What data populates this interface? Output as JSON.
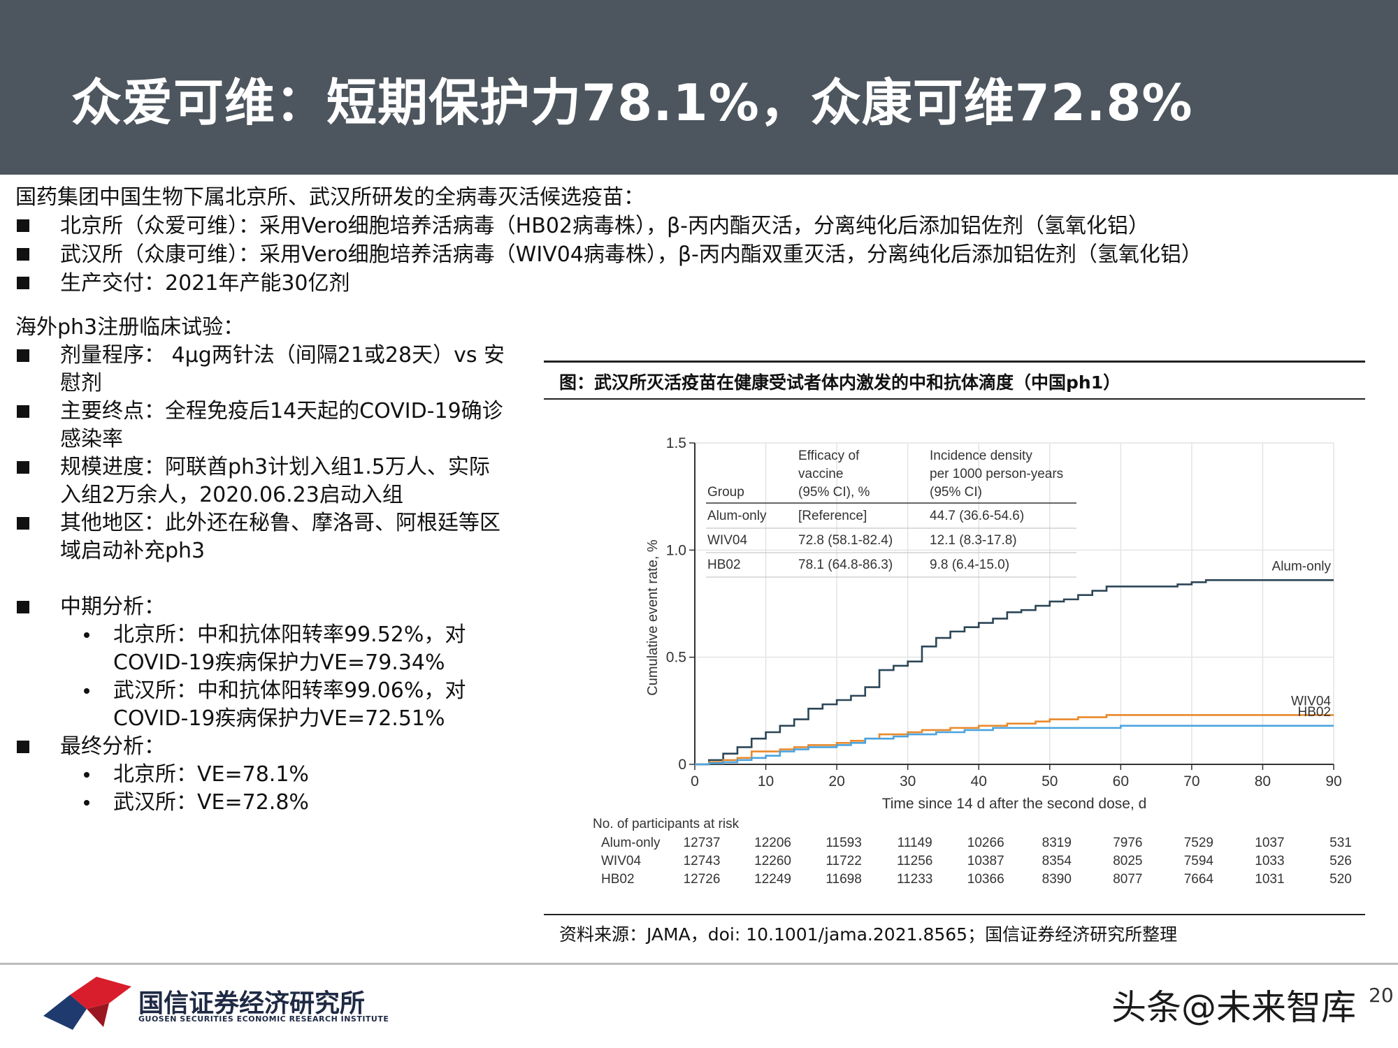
{
  "header": {
    "title": "众爱可维：短期保护力78.1%，众康可维72.8%"
  },
  "intro": {
    "line": "国药集团中国生物下属北京所、武汉所研发的全病毒灭活候选疫苗：",
    "bullets": [
      "北京所（众爱可维）：采用Vero细胞培养活病毒（HB02病毒株），β-丙内酯灭活，分离纯化后添加铝佐剂（氢氧化铝）",
      "武汉所（众康可维）：采用Vero细胞培养活病毒（WIV04病毒株），β-丙内酯双重灭活，分离纯化后添加铝佐剂（氢氧化铝）",
      "生产交付：2021年产能30亿剂"
    ]
  },
  "left": {
    "heading": "海外ph3注册临床试验：",
    "bullets": [
      "剂量程序： 4μg两针法（间隔21或28天）vs 安慰剂",
      "主要终点：全程免疫后14天起的COVID-19确诊感染率",
      "规模进度：阿联酋ph3计划入组1.5万人、实际入组2万余人，2020.06.23启动入组",
      "其他地区：此外还在秘鲁、摩洛哥、阿根廷等区域启动补充ph3"
    ],
    "interim": {
      "label": "中期分析：",
      "items": [
        "北京所：中和抗体阳转率99.52%，对COVID-19疾病保护力VE=79.34%",
        "武汉所：中和抗体阳转率99.06%，对COVID-19疾病保护力VE=72.51%"
      ]
    },
    "final": {
      "label": "最终分析：",
      "items": [
        "北京所：VE=78.1%",
        "武汉所：VE=72.8%"
      ]
    }
  },
  "figure": {
    "title": "图：武汉所灭活疫苗在健康受试者体内激发的中和抗体滴度（中国ph1）",
    "source": "资料来源：JAMA，doi: 10.1001/jama.2021.8565；国信证券经济研究所整理"
  },
  "chart_data": {
    "type": "line",
    "xlabel": "Time since 14 d after the second dose, d",
    "ylabel": "Cumulative event rate, %",
    "xlim": [
      0,
      90
    ],
    "ylim": [
      0,
      1.5
    ],
    "xticks": [
      "0",
      "10",
      "20",
      "30",
      "40",
      "50",
      "60",
      "70",
      "80",
      "90"
    ],
    "yticks": [
      "0",
      "0.5",
      "1.0",
      "1.5"
    ],
    "grid": true,
    "series": [
      {
        "name": "Alum-only",
        "color": "#2b4657",
        "x": [
          0,
          2,
          4,
          6,
          8,
          10,
          12,
          14,
          16,
          18,
          20,
          22,
          24,
          26,
          28,
          30,
          32,
          34,
          36,
          38,
          40,
          42,
          44,
          46,
          48,
          50,
          52,
          54,
          56,
          58,
          60,
          62,
          64,
          66,
          68,
          70,
          72,
          74,
          76,
          78,
          80,
          82,
          84,
          86,
          88,
          90
        ],
        "y": [
          0,
          0.02,
          0.05,
          0.08,
          0.12,
          0.15,
          0.18,
          0.21,
          0.26,
          0.28,
          0.3,
          0.32,
          0.36,
          0.44,
          0.46,
          0.48,
          0.55,
          0.59,
          0.62,
          0.64,
          0.66,
          0.68,
          0.71,
          0.72,
          0.74,
          0.76,
          0.77,
          0.79,
          0.81,
          0.83,
          0.83,
          0.83,
          0.83,
          0.83,
          0.84,
          0.85,
          0.86,
          0.86,
          0.86,
          0.86,
          0.86,
          0.86,
          0.86,
          0.86,
          0.86,
          0.86
        ]
      },
      {
        "name": "WIV04",
        "color": "#e8892b",
        "x": [
          0,
          2,
          4,
          6,
          8,
          10,
          12,
          14,
          16,
          18,
          20,
          22,
          24,
          26,
          28,
          30,
          32,
          34,
          36,
          38,
          40,
          42,
          44,
          46,
          48,
          50,
          52,
          54,
          56,
          58,
          60,
          62,
          64,
          66,
          68,
          70,
          72,
          74,
          76,
          78,
          80,
          82,
          84,
          86,
          88,
          90
        ],
        "y": [
          0,
          0.01,
          0.02,
          0.03,
          0.06,
          0.06,
          0.07,
          0.08,
          0.09,
          0.09,
          0.1,
          0.11,
          0.12,
          0.14,
          0.14,
          0.15,
          0.16,
          0.16,
          0.17,
          0.17,
          0.18,
          0.18,
          0.19,
          0.19,
          0.2,
          0.21,
          0.21,
          0.22,
          0.22,
          0.23,
          0.23,
          0.23,
          0.23,
          0.23,
          0.23,
          0.23,
          0.23,
          0.23,
          0.23,
          0.23,
          0.23,
          0.23,
          0.23,
          0.23,
          0.23,
          0.23
        ]
      },
      {
        "name": "HB02",
        "color": "#4aa3df",
        "x": [
          0,
          2,
          4,
          6,
          8,
          10,
          12,
          14,
          16,
          18,
          20,
          22,
          24,
          26,
          28,
          30,
          32,
          34,
          36,
          38,
          40,
          42,
          44,
          46,
          48,
          50,
          52,
          54,
          56,
          58,
          60,
          62,
          64,
          66,
          68,
          70,
          72,
          74,
          76,
          78,
          80,
          82,
          84,
          86,
          88,
          90
        ],
        "y": [
          0,
          0.005,
          0.01,
          0.02,
          0.03,
          0.04,
          0.06,
          0.07,
          0.08,
          0.08,
          0.09,
          0.1,
          0.12,
          0.12,
          0.13,
          0.14,
          0.14,
          0.15,
          0.15,
          0.16,
          0.16,
          0.17,
          0.17,
          0.17,
          0.17,
          0.17,
          0.17,
          0.17,
          0.17,
          0.17,
          0.18,
          0.18,
          0.18,
          0.18,
          0.18,
          0.18,
          0.18,
          0.18,
          0.18,
          0.18,
          0.18,
          0.18,
          0.18,
          0.18,
          0.18,
          0.18
        ]
      }
    ],
    "inset_table": {
      "header": [
        "Group",
        "Efficacy of vaccine (95% CI), %",
        "Incidence density per 1000 person-years (95% CI)"
      ],
      "rows": [
        [
          "Alum-only",
          "[Reference]",
          "44.7 (36.6-54.6)"
        ],
        [
          "WIV04",
          "72.8 (58.1-82.4)",
          "12.1 (8.3-17.8)"
        ],
        [
          "HB02",
          "78.1 (64.8-86.3)",
          "9.8 (6.4-15.0)"
        ]
      ]
    },
    "risk_table": {
      "title": "No. of participants at risk",
      "rows": [
        {
          "group": "Alum-only",
          "values": [
            "12737",
            "12206",
            "11593",
            "11149",
            "10266",
            "8319",
            "7976",
            "7529",
            "1037",
            "531"
          ]
        },
        {
          "group": "WIV04",
          "values": [
            "12743",
            "12260",
            "11722",
            "11256",
            "10387",
            "8354",
            "8025",
            "7594",
            "1033",
            "526"
          ]
        },
        {
          "group": "HB02",
          "values": [
            "12726",
            "12249",
            "11698",
            "11233",
            "10366",
            "8390",
            "8077",
            "7664",
            "1031",
            "520"
          ]
        }
      ]
    }
  },
  "footer": {
    "org_cn": "国信证券经济研究所",
    "org_en": "GUOSEN SECURITIES ECONOMIC RESEARCH INSTITUTE",
    "watermark": "头条@未来智库",
    "page": "20"
  }
}
